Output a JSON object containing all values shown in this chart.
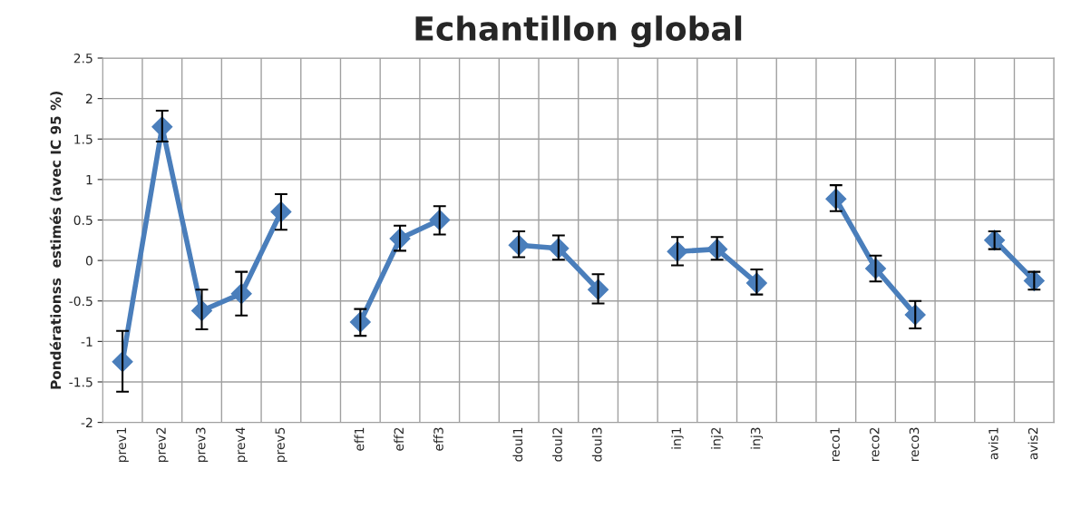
{
  "chart_data": {
    "type": "line",
    "title": "Echantillon global",
    "ylabel": "Pondérationss  estimés (avec IC 95 %)",
    "categories": [
      "prev1",
      "prev2",
      "prev3",
      "prev4",
      "prev5",
      null,
      "eff1",
      "eff2",
      "eff3",
      null,
      "doul1",
      "doul2",
      "doul3",
      null,
      "inj1",
      "inj2",
      "inj3",
      null,
      "reco1",
      "reco2",
      "reco3",
      null,
      "avis1",
      "avis2"
    ],
    "series": [
      {
        "color": "#4a7ebb",
        "values": [
          -1.25,
          1.65,
          -0.62,
          -0.41,
          0.6,
          null,
          -0.76,
          0.27,
          0.5,
          null,
          0.19,
          0.15,
          -0.36,
          null,
          0.11,
          0.14,
          -0.28,
          null,
          0.76,
          -0.1,
          -0.67,
          null,
          0.25,
          -0.25
        ],
        "errors": [
          [
            -1.62,
            -0.87
          ],
          [
            1.47,
            1.85
          ],
          [
            -0.85,
            -0.36
          ],
          [
            -0.68,
            -0.14
          ],
          [
            0.38,
            0.82
          ],
          null,
          [
            -0.93,
            -0.6
          ],
          [
            0.12,
            0.43
          ],
          [
            0.32,
            0.67
          ],
          null,
          [
            0.04,
            0.36
          ],
          [
            0.01,
            0.31
          ],
          [
            -0.53,
            -0.17
          ],
          null,
          [
            -0.06,
            0.29
          ],
          [
            0.01,
            0.29
          ],
          [
            -0.42,
            -0.11
          ],
          null,
          [
            0.61,
            0.93
          ],
          [
            -0.26,
            0.06
          ],
          [
            -0.84,
            -0.5
          ],
          null,
          [
            0.14,
            0.36
          ],
          [
            -0.36,
            -0.14
          ]
        ]
      }
    ],
    "ylim": [
      -2,
      2.5
    ],
    "yticks": [
      -2,
      -1.5,
      -1,
      -0.5,
      0,
      0.5,
      1,
      1.5,
      2,
      2.5
    ],
    "grid": true,
    "marker": "diamond",
    "line_style": "solid"
  }
}
